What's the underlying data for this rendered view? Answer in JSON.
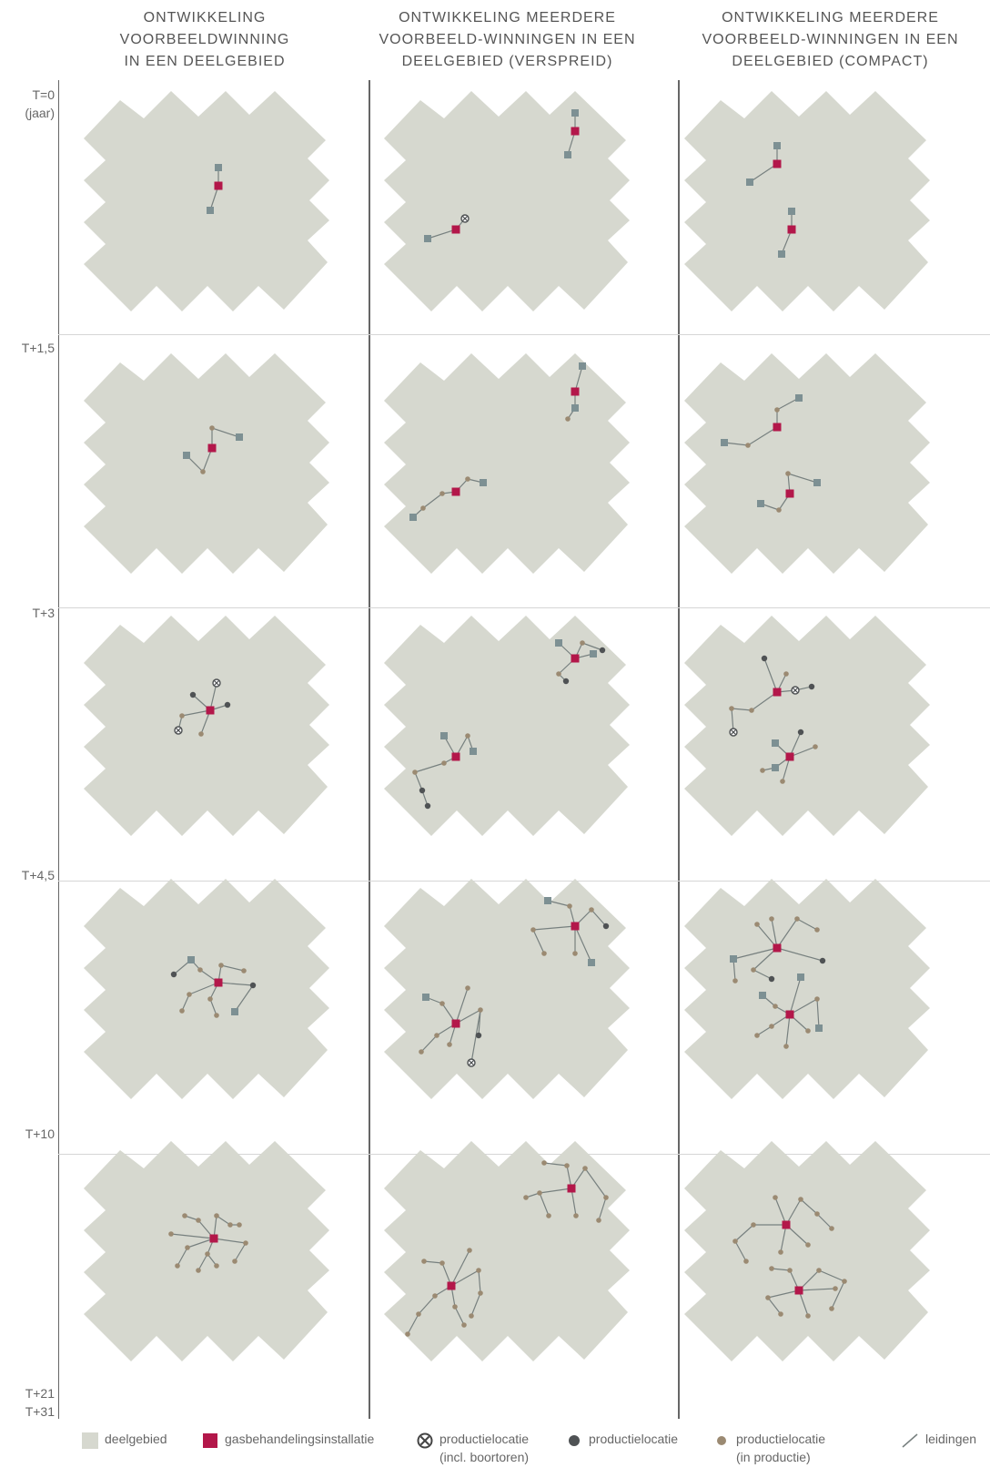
{
  "columns": [
    {
      "title_lines": [
        "ONTWIKKELING",
        "VOORBEELDWINNING",
        "IN EEN DEELGEBIED"
      ]
    },
    {
      "title_lines": [
        "ONTWIKKELING MEERDERE",
        "VOORBEELD-WINNINGEN IN EEN",
        "DEELGEBIED (VERSPREID)"
      ]
    },
    {
      "title_lines": [
        "ONTWIKKELING MEERDERE",
        "VOORBEELD-WINNINGEN IN EEN",
        "DEELGEBIED (COMPACT)"
      ]
    }
  ],
  "time_labels": [
    {
      "lines": [
        "T=0",
        "(jaar)"
      ]
    },
    {
      "lines": [
        "T+1,5"
      ]
    },
    {
      "lines": [
        "T+3"
      ]
    },
    {
      "lines": [
        "T+4,5"
      ]
    },
    {
      "lines": [
        "T+10"
      ]
    },
    {
      "lines": [
        "T+21",
        "T+31"
      ]
    }
  ],
  "legend": [
    {
      "symbol": "deelgebied",
      "lines": [
        "deelgebied"
      ]
    },
    {
      "symbol": "gasbehandelingsinstallatie",
      "lines": [
        "gasbehandelingsinstallatie"
      ]
    },
    {
      "symbol": "productielocatie-boortoren",
      "lines": [
        "productielocatie",
        "(incl. boortoren)"
      ]
    },
    {
      "symbol": "productielocatie",
      "lines": [
        "productielocatie"
      ]
    },
    {
      "symbol": "productielocatie-in-productie",
      "lines": [
        "productielocatie",
        "(in productie)"
      ]
    },
    {
      "symbol": "leidingen",
      "lines": [
        "leidingen"
      ]
    }
  ],
  "colors": {
    "deelgebied": "#d6d8cf",
    "gasbehandelingsinstallatie": "#b3174a",
    "productielocatie": "#4f5254",
    "productielocatie_in_productie": "#9b8a72",
    "productielocatie_planned": "#7d9093",
    "leidingen": "#77807f",
    "divider": "#666666"
  },
  "icons": {
    "deelgebied": "light-grey-square",
    "gasbehandelingsinstallatie": "crimson-square",
    "productielocatie-boortoren": "circled-x",
    "productielocatie": "dark-grey-dot",
    "productielocatie-in-productie": "light-brown-dot",
    "leidingen": "diagonal-line"
  }
}
